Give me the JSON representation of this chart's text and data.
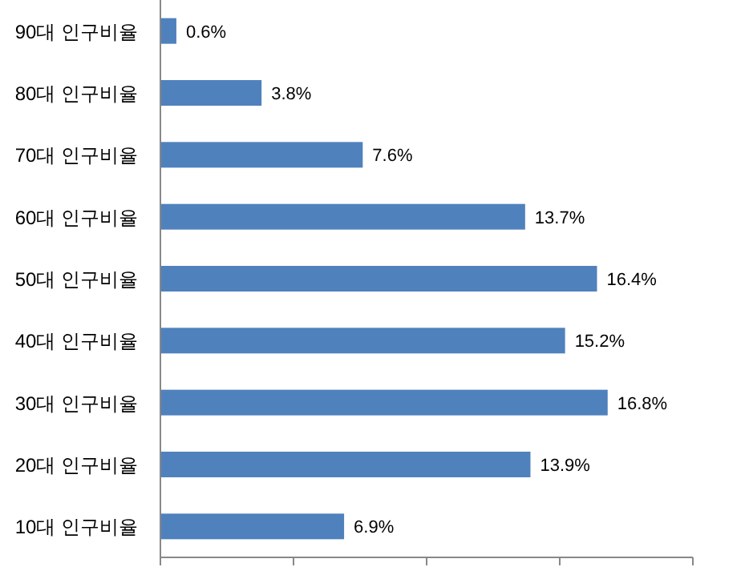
{
  "chart_data": {
    "type": "bar",
    "orientation": "horizontal",
    "categories": [
      "90대 인구비율",
      "80대 인구비율",
      "70대 인구비율",
      "60대 인구비율",
      "50대 인구비율",
      "40대 인구비율",
      "30대 인구비율",
      "20대 인구비율",
      "10대 인구비율"
    ],
    "values": [
      0.6,
      3.8,
      7.6,
      13.7,
      16.4,
      15.2,
      16.8,
      13.9,
      6.9
    ],
    "value_labels": [
      "0.6%",
      "3.8%",
      "7.6%",
      "13.7%",
      "16.4%",
      "15.2%",
      "16.8%",
      "13.9%",
      "6.9%"
    ],
    "color": "#4f81bd",
    "xlim": [
      0,
      20
    ],
    "xticks": [
      {
        "value": 0,
        "label": null
      },
      {
        "value": 5,
        "label": null
      },
      {
        "value": 10,
        "label": null
      },
      {
        "value": 15,
        "label": null
      },
      {
        "value": 20,
        "label": null
      }
    ],
    "tick_labels": "y",
    "grid": false
  }
}
